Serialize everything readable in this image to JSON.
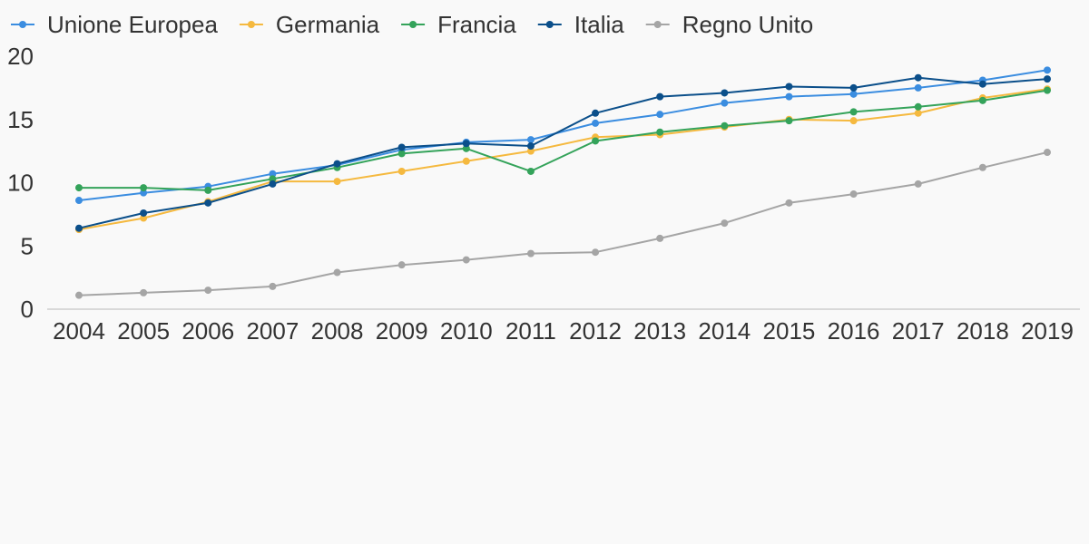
{
  "chart_data": {
    "type": "line",
    "title": "",
    "xlabel": "",
    "ylabel": "",
    "categories": [
      "2004",
      "2005",
      "2006",
      "2007",
      "2008",
      "2009",
      "2010",
      "2011",
      "2012",
      "2013",
      "2014",
      "2015",
      "2016",
      "2017",
      "2018",
      "2019"
    ],
    "ylim": [
      0,
      20
    ],
    "yticks": [
      0,
      5,
      10,
      15,
      20
    ],
    "grid": false,
    "legend_position": "top-left",
    "series": [
      {
        "name": "Unione Europea",
        "color": "#3b8de0",
        "values": [
          8.6,
          9.2,
          9.7,
          10.7,
          11.4,
          12.6,
          13.2,
          13.4,
          14.7,
          15.4,
          16.3,
          16.8,
          17.0,
          17.5,
          18.1,
          18.9
        ]
      },
      {
        "name": "Germania",
        "color": "#f5b93f",
        "values": [
          6.3,
          7.2,
          8.5,
          10.1,
          10.1,
          10.9,
          11.7,
          12.5,
          13.6,
          13.8,
          14.4,
          15.0,
          14.9,
          15.5,
          16.7,
          17.4
        ]
      },
      {
        "name": "Francia",
        "color": "#34a35a",
        "values": [
          9.6,
          9.6,
          9.4,
          10.3,
          11.2,
          12.3,
          12.7,
          10.9,
          13.3,
          14.0,
          14.5,
          14.9,
          15.6,
          16.0,
          16.5,
          17.3
        ]
      },
      {
        "name": "Italia",
        "color": "#0b4f8a",
        "values": [
          6.4,
          7.6,
          8.4,
          9.9,
          11.5,
          12.8,
          13.1,
          12.9,
          15.5,
          16.8,
          17.1,
          17.6,
          17.5,
          18.3,
          17.8,
          18.2
        ]
      },
      {
        "name": "Regno Unito",
        "color": "#a5a5a5",
        "values": [
          1.1,
          1.3,
          1.5,
          1.8,
          2.9,
          3.5,
          3.9,
          4.4,
          4.5,
          5.6,
          6.8,
          8.4,
          9.1,
          9.9,
          11.2,
          12.4
        ]
      }
    ]
  }
}
